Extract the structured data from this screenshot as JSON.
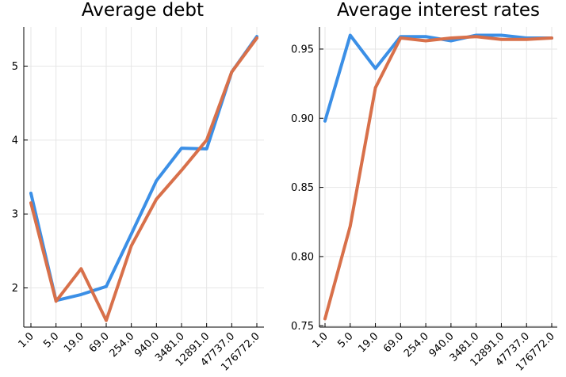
{
  "chart_data": [
    {
      "type": "line",
      "title": "Average debt",
      "categories": [
        "1.0",
        "5.0",
        "19.0",
        "69.0",
        "254.0",
        "940.0",
        "3481.0",
        "12891.0",
        "47737.0",
        "176772.0"
      ],
      "series": [
        {
          "color": "#3b8fe6",
          "values": [
            3.28,
            1.83,
            1.91,
            2.02,
            2.73,
            3.45,
            3.89,
            3.88,
            4.92,
            5.4
          ]
        },
        {
          "color": "#d8704a",
          "values": [
            3.15,
            1.82,
            2.26,
            1.56,
            2.57,
            3.2,
            3.59,
            4.0,
            4.92,
            5.38
          ]
        }
      ],
      "yticks": [
        2,
        3,
        4,
        5
      ],
      "ylim": [
        1.47,
        5.53
      ],
      "grid": true
    },
    {
      "type": "line",
      "title": "Average interest rates",
      "categories": [
        "1.0",
        "5.0",
        "19.0",
        "69.0",
        "254.0",
        "940.0",
        "3481.0",
        "12891.0",
        "47737.0",
        "176772.0"
      ],
      "series": [
        {
          "color": "#3b8fe6",
          "values": [
            0.898,
            0.96,
            0.936,
            0.959,
            0.959,
            0.956,
            0.96,
            0.96,
            0.958,
            0.958
          ]
        },
        {
          "color": "#d8704a",
          "values": [
            0.755,
            0.822,
            0.922,
            0.958,
            0.956,
            0.958,
            0.959,
            0.957,
            0.957,
            0.958
          ]
        }
      ],
      "yticks": [
        0.75,
        0.8,
        0.85,
        0.9,
        0.95
      ],
      "ylim": [
        0.749,
        0.966
      ],
      "grid": true
    }
  ]
}
